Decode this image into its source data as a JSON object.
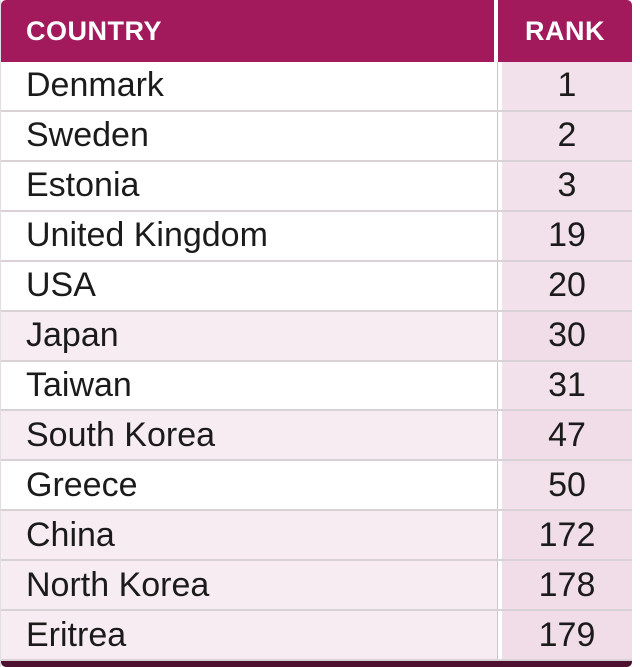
{
  "colors": {
    "header_bg": "#a21a5c",
    "header_text": "#ffffff",
    "rank_column_bg": "#f2e1ea",
    "shaded_row_bg": "#f7ecf1",
    "row_text": "#1b1b1b",
    "bottom_bar": "#4e1130"
  },
  "table": {
    "columns": [
      {
        "label": "COUNTRY"
      },
      {
        "label": "RANK"
      }
    ],
    "rows": [
      {
        "country": "Denmark",
        "rank": "1",
        "shaded": false
      },
      {
        "country": "Sweden",
        "rank": "2",
        "shaded": false
      },
      {
        "country": "Estonia",
        "rank": "3",
        "shaded": false
      },
      {
        "country": "United Kingdom",
        "rank": "19",
        "shaded": false
      },
      {
        "country": "USA",
        "rank": "20",
        "shaded": false
      },
      {
        "country": "Japan",
        "rank": "30",
        "shaded": true
      },
      {
        "country": "Taiwan",
        "rank": "31",
        "shaded": false
      },
      {
        "country": "South Korea",
        "rank": "47",
        "shaded": true
      },
      {
        "country": "Greece",
        "rank": "50",
        "shaded": false
      },
      {
        "country": "China",
        "rank": "172",
        "shaded": true
      },
      {
        "country": "North Korea",
        "rank": "178",
        "shaded": true
      },
      {
        "country": "Eritrea",
        "rank": "179",
        "shaded": true
      }
    ]
  },
  "chart_data": {
    "type": "table",
    "title": "",
    "columns": [
      "COUNTRY",
      "RANK"
    ],
    "categories": [
      "Denmark",
      "Sweden",
      "Estonia",
      "United Kingdom",
      "USA",
      "Japan",
      "Taiwan",
      "South Korea",
      "Greece",
      "China",
      "North Korea",
      "Eritrea"
    ],
    "values": [
      1,
      2,
      3,
      19,
      20,
      30,
      31,
      47,
      50,
      172,
      178,
      179
    ]
  }
}
